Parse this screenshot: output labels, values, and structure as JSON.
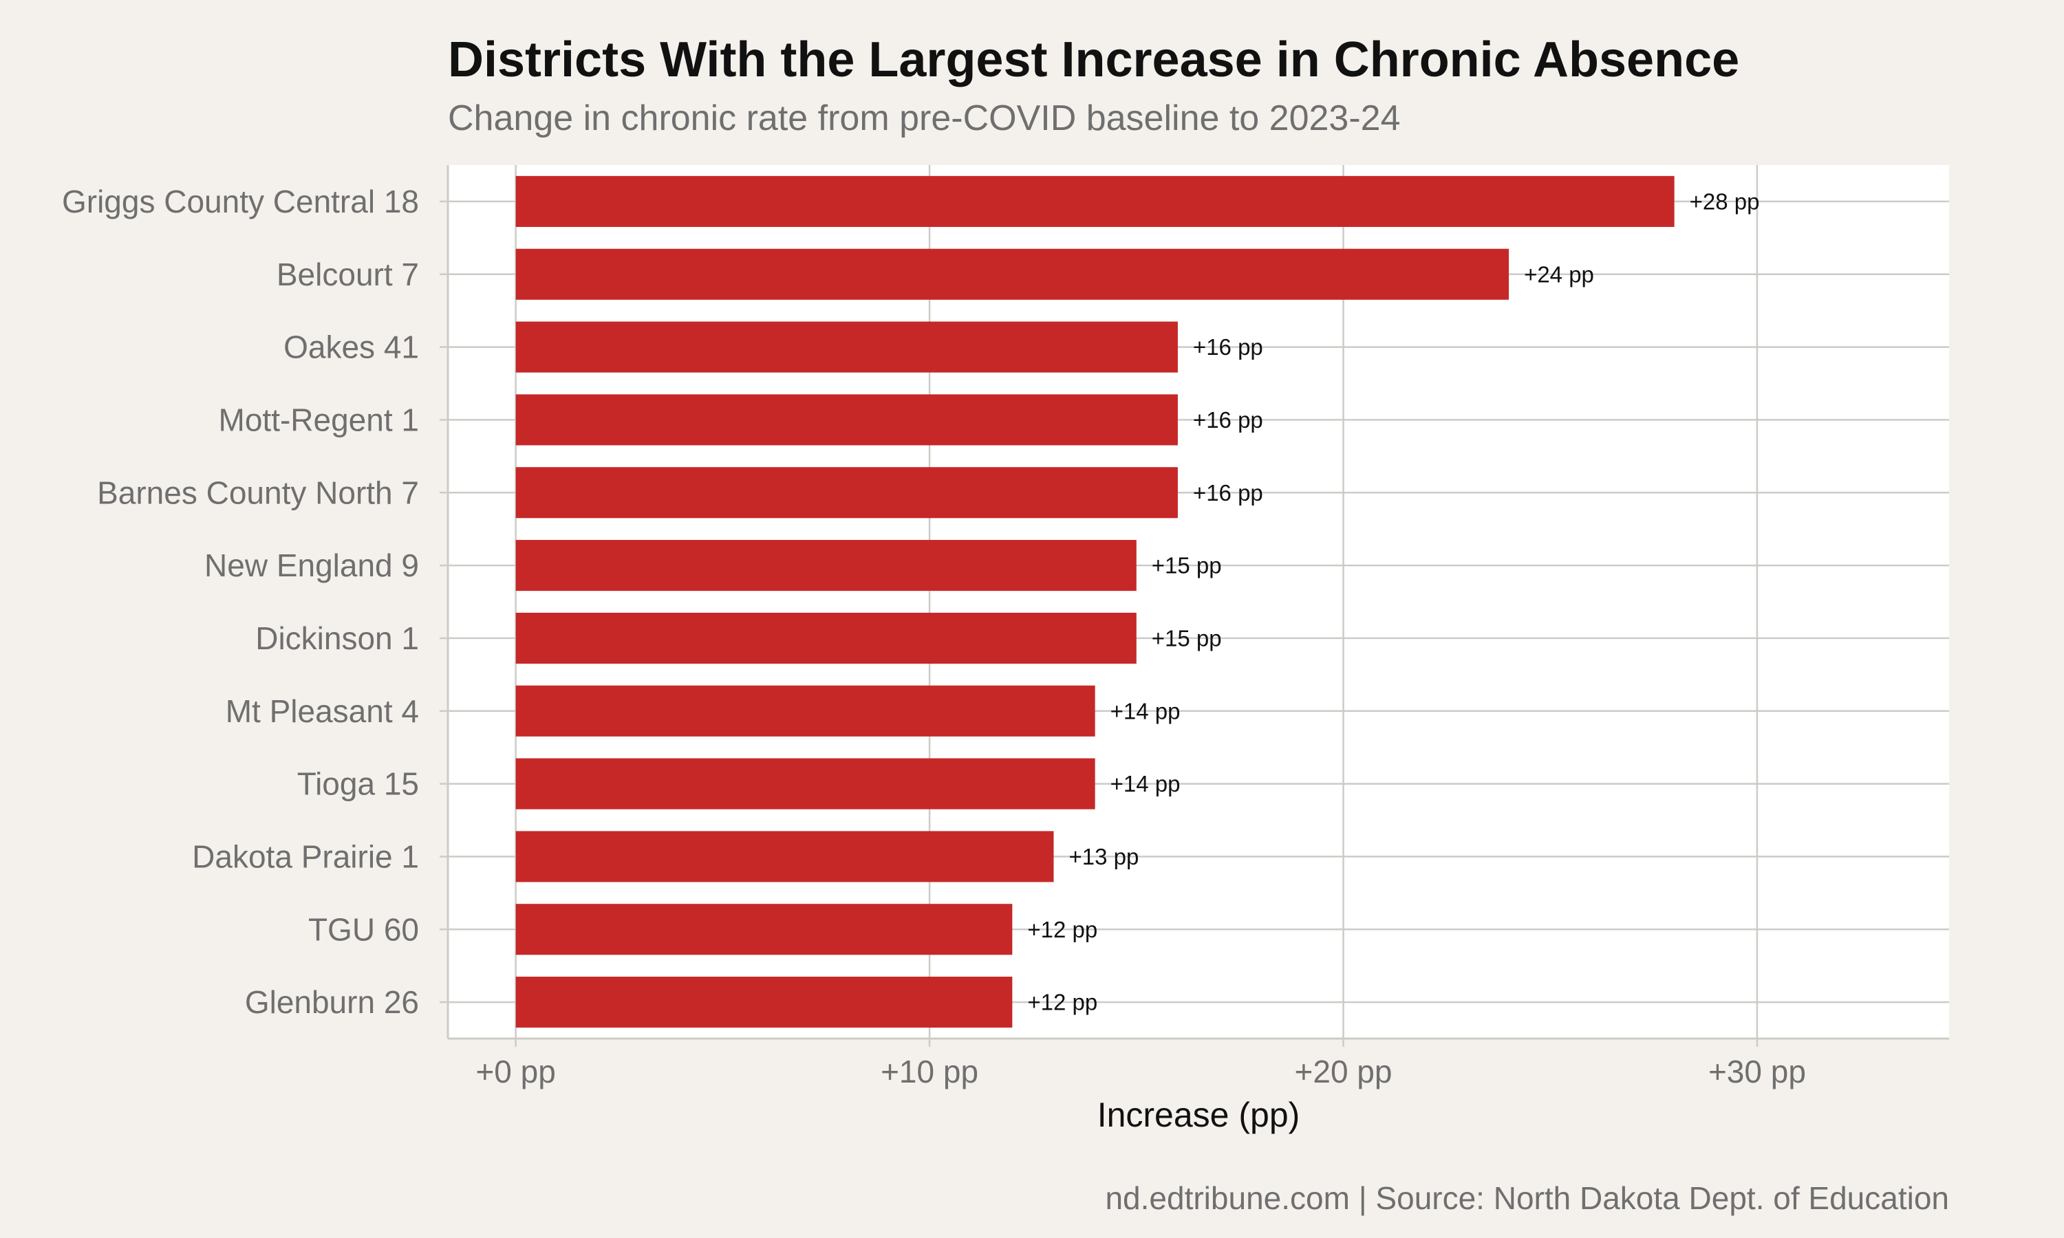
{
  "chart_data": {
    "type": "bar",
    "orientation": "horizontal",
    "title": "Districts With the Largest Increase in Chronic Absence",
    "subtitle": "Change in chronic rate from pre-COVID baseline to 2023-24",
    "xlabel": "Increase (pp)",
    "ylabel": "",
    "caption": "nd.edtribune.com | Source: North Dakota Dept. of Education",
    "categories": [
      "Griggs County Central 18",
      "Belcourt 7",
      "Oakes 41",
      "Mott-Regent 1",
      "Barnes County North 7",
      "New England 9",
      "Dickinson 1",
      "Mt Pleasant 4",
      "Tioga 15",
      "Dakota Prairie 1",
      "TGU 60",
      "Glenburn 26"
    ],
    "values": [
      28,
      24,
      16,
      16,
      16,
      15,
      15,
      14,
      14,
      13,
      12,
      12
    ],
    "data_labels": [
      "+28 pp",
      "+24 pp",
      "+16 pp",
      "+16 pp",
      "+16 pp",
      "+15 pp",
      "+15 pp",
      "+14 pp",
      "+14 pp",
      "+13 pp",
      "+12 pp",
      "+12 pp"
    ],
    "x_ticks": [
      0,
      10,
      20,
      30
    ],
    "x_tick_labels": [
      "+0 pp",
      "+10 pp",
      "+20 pp",
      "+30 pp"
    ],
    "xlim": [
      -1.64,
      34.64
    ],
    "grid": true,
    "legend": "none",
    "colors": {
      "bar": "#c62828",
      "background": "#f4f1ec",
      "panel": "#ffffff",
      "grid": "#cdcbc6",
      "tick_label": "#6f6f6f",
      "title": "#111111"
    }
  }
}
